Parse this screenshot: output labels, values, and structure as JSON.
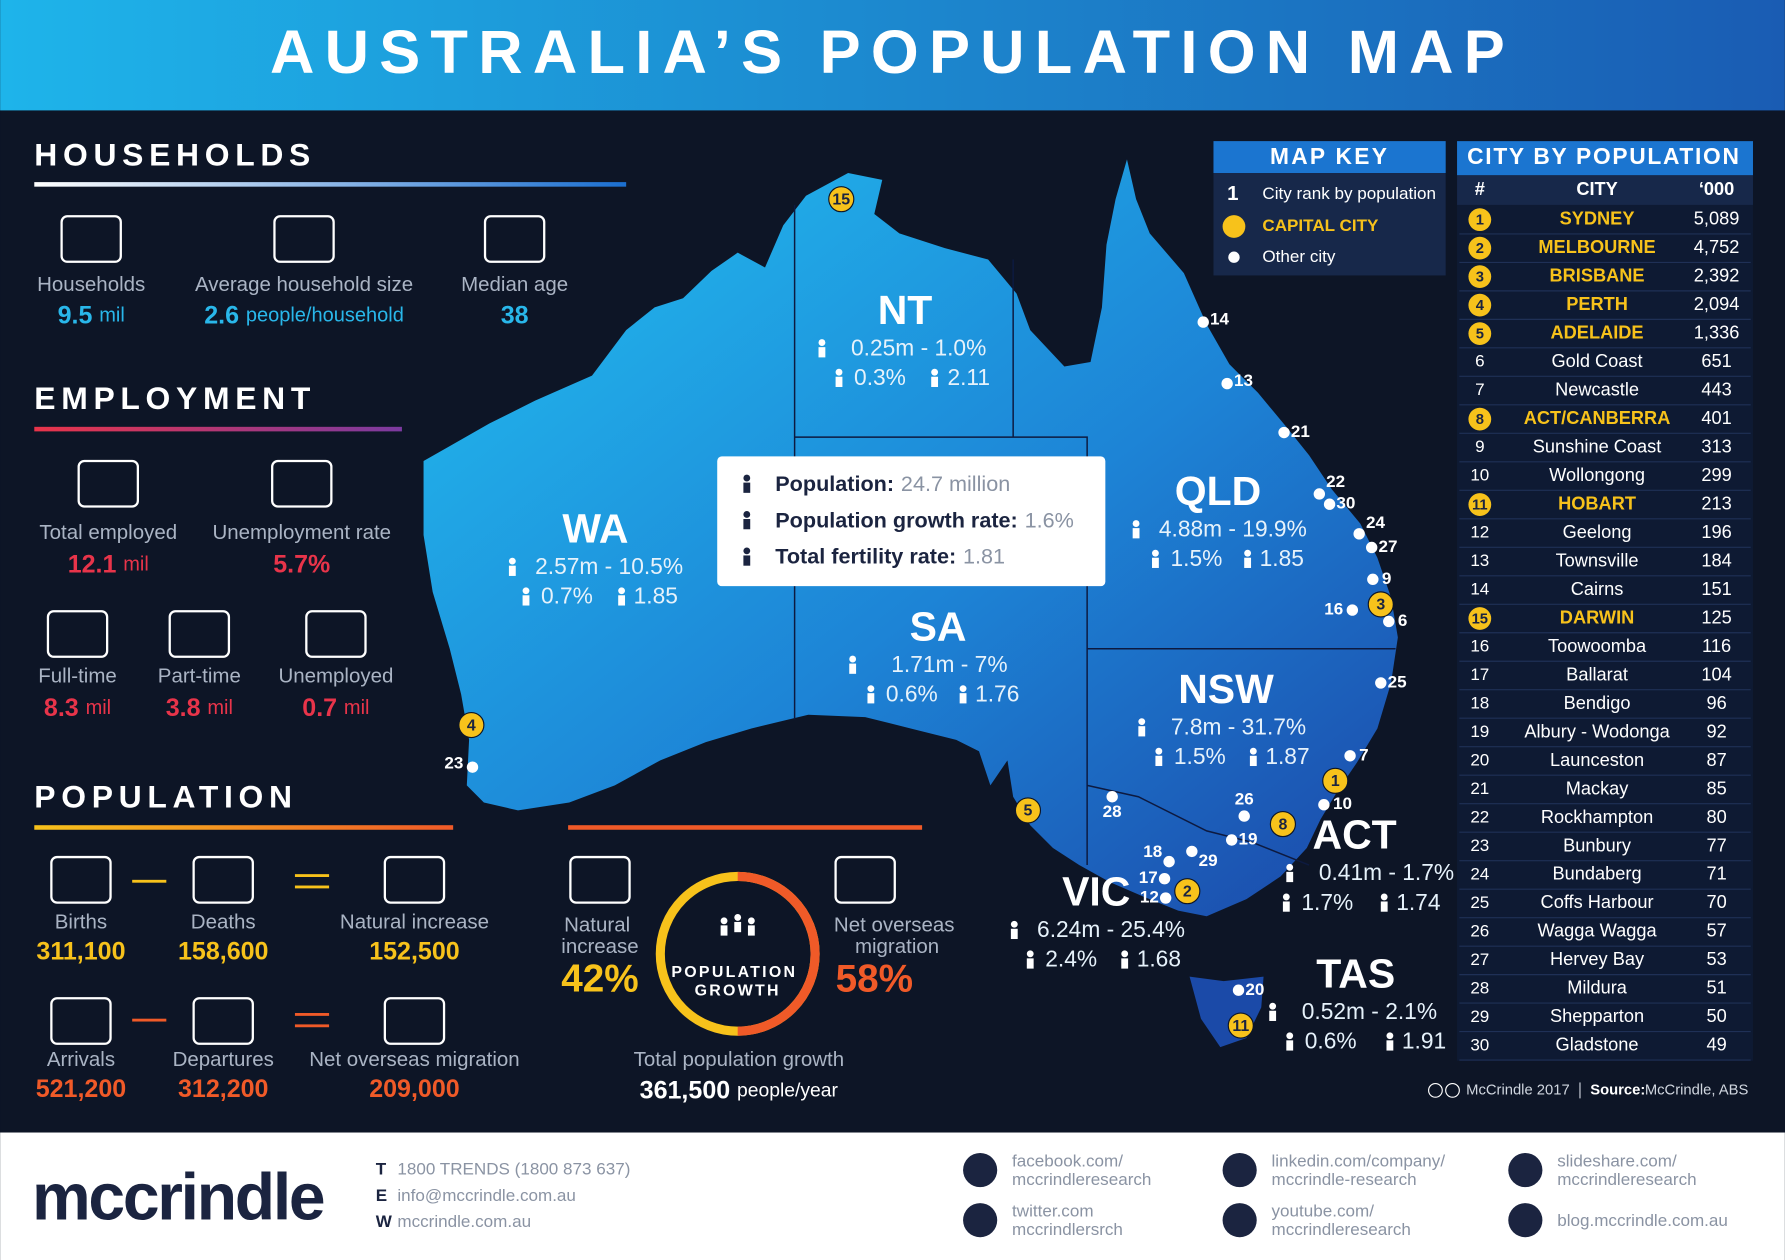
{
  "header": {
    "title": "AUSTRALIA’S POPULATION MAP"
  },
  "households": {
    "heading": "HOUSEHOLDS",
    "items": [
      {
        "label": "Households",
        "value": "9.5",
        "unit": "mil"
      },
      {
        "label": "Average household size",
        "value": "2.6",
        "unit": "people/household"
      },
      {
        "label": "Median age",
        "value": "38"
      }
    ]
  },
  "employment": {
    "heading": "EMPLOYMENT",
    "items": [
      {
        "label": "Total employed",
        "value": "12.1",
        "unit": "mil"
      },
      {
        "label": "Unemployment rate",
        "value": "5.7%"
      },
      {
        "label": "Full-time",
        "value": "8.3",
        "unit": "mil"
      },
      {
        "label": "Part-time",
        "value": "3.8",
        "unit": "mil"
      },
      {
        "label": "Unemployed",
        "value": "0.7",
        "unit": "mil"
      }
    ]
  },
  "population": {
    "heading": "POPULATION",
    "items": [
      {
        "label": "Births",
        "value": "311,100"
      },
      {
        "label": "Deaths",
        "value": "158,600"
      },
      {
        "label": "Natural increase",
        "value": "152,500"
      },
      {
        "label": "Arrivals",
        "value": "521,200"
      },
      {
        "label": "Departures",
        "value": "312,200"
      },
      {
        "label": "Net overseas migration",
        "value": "209,000"
      }
    ]
  },
  "growth": {
    "natural_label": "Natural increase",
    "natural_value": "42%",
    "center": "POPULATION GROWTH",
    "overseas_label": "Net overseas migration",
    "overseas_value": "58%",
    "total_label": "Total population growth",
    "total_value": "361,500",
    "total_unit": "people/year"
  },
  "summary": {
    "items": [
      {
        "label": "Population:",
        "value": "24.7 million"
      },
      {
        "label": "Population growth rate:",
        "value": "1.6%"
      },
      {
        "label": "Total fertility rate:",
        "value": "1.81"
      }
    ]
  },
  "states": [
    {
      "name": "NT",
      "population": "0.25m - 1.0%",
      "growth": "0.3%",
      "fertility": "2.11"
    },
    {
      "name": "WA",
      "population": "2.57m - 10.5%",
      "growth": "0.7%",
      "fertility": "1.85"
    },
    {
      "name": "SA",
      "population": "1.71m - 7%",
      "growth": "0.6%",
      "fertility": "1.76"
    },
    {
      "name": "QLD",
      "population": "4.88m - 19.9%",
      "growth": "1.5%",
      "fertility": "1.85"
    },
    {
      "name": "NSW",
      "population": "7.8m - 31.7%",
      "growth": "1.5%",
      "fertility": "1.87"
    },
    {
      "name": "ACT",
      "population": "0.41m - 1.7%",
      "growth": "1.7%",
      "fertility": "1.74"
    },
    {
      "name": "VIC",
      "population": "6.24m - 25.4%",
      "growth": "2.4%",
      "fertility": "1.68"
    },
    {
      "name": "TAS",
      "population": "0.52m - 2.1%",
      "growth": "0.6%",
      "fertility": "1.91"
    }
  ],
  "map_key": {
    "title": "MAP KEY",
    "rank_symbol": "1",
    "items": [
      "City rank by population",
      "CAPITAL CITY",
      "Other city"
    ]
  },
  "city_table": {
    "title": "CITY BY POPULATION",
    "columns": [
      "#",
      "CITY",
      "‘000"
    ],
    "rows": [
      {
        "rank": "1",
        "city": "SYDNEY",
        "population": "5,089",
        "capital": true
      },
      {
        "rank": "2",
        "city": "MELBOURNE",
        "population": "4,752",
        "capital": true
      },
      {
        "rank": "3",
        "city": "BRISBANE",
        "population": "2,392",
        "capital": true
      },
      {
        "rank": "4",
        "city": "PERTH",
        "population": "2,094",
        "capital": true
      },
      {
        "rank": "5",
        "city": "ADELAIDE",
        "population": "1,336",
        "capital": true
      },
      {
        "rank": "6",
        "city": "Gold Coast",
        "population": "651",
        "capital": false
      },
      {
        "rank": "7",
        "city": "Newcastle",
        "population": "443",
        "capital": false
      },
      {
        "rank": "8",
        "city": "ACT/CANBERRA",
        "population": "401",
        "capital": true
      },
      {
        "rank": "9",
        "city": "Sunshine Coast",
        "population": "313",
        "capital": false
      },
      {
        "rank": "10",
        "city": "Wollongong",
        "population": "299",
        "capital": false
      },
      {
        "rank": "11",
        "city": "HOBART",
        "population": "213",
        "capital": true
      },
      {
        "rank": "12",
        "city": "Geelong",
        "population": "196",
        "capital": false
      },
      {
        "rank": "13",
        "city": "Townsville",
        "population": "184",
        "capital": false
      },
      {
        "rank": "14",
        "city": "Cairns",
        "population": "151",
        "capital": false
      },
      {
        "rank": "15",
        "city": "DARWIN",
        "population": "125",
        "capital": true
      },
      {
        "rank": "16",
        "city": "Toowoomba",
        "population": "116",
        "capital": false
      },
      {
        "rank": "17",
        "city": "Ballarat",
        "population": "104",
        "capital": false
      },
      {
        "rank": "18",
        "city": "Bendigo",
        "population": "96",
        "capital": false
      },
      {
        "rank": "19",
        "city": "Albury - Wodonga",
        "population": "92",
        "capital": false
      },
      {
        "rank": "20",
        "city": "Launceston",
        "population": "87",
        "capital": false
      },
      {
        "rank": "21",
        "city": "Mackay",
        "population": "85",
        "capital": false
      },
      {
        "rank": "22",
        "city": "Rockhampton",
        "population": "80",
        "capital": false
      },
      {
        "rank": "23",
        "city": "Bunbury",
        "population": "77",
        "capital": false
      },
      {
        "rank": "24",
        "city": "Bundaberg",
        "population": "71",
        "capital": false
      },
      {
        "rank": "25",
        "city": "Coffs Harbour",
        "population": "70",
        "capital": false
      },
      {
        "rank": "26",
        "city": "Wagga Wagga",
        "population": "57",
        "capital": false
      },
      {
        "rank": "27",
        "city": "Hervey Bay",
        "population": "53",
        "capital": false
      },
      {
        "rank": "28",
        "city": "Mildura",
        "population": "51",
        "capital": false
      },
      {
        "rank": "29",
        "city": "Shepparton",
        "population": "50",
        "capital": false
      },
      {
        "rank": "30",
        "city": "Gladstone",
        "population": "49",
        "capital": false
      }
    ]
  },
  "credit": {
    "copyright": "McCrindle 2017",
    "source_label": "Source:",
    "source": "McCrindle, ABS"
  },
  "footer": {
    "logo": "mccrindle",
    "contacts": [
      {
        "key": "T",
        "text": "1800 TRENDS (1800 873 637)"
      },
      {
        "key": "E",
        "text": "info@mccrindle.com.au"
      },
      {
        "key": "W",
        "text": "mccrindle.com.au"
      }
    ],
    "social": [
      {
        "lines": [
          "facebook.com/",
          "mccrindleresearch"
        ]
      },
      {
        "lines": [
          "twitter.com",
          "mccrindlersrch"
        ]
      },
      {
        "lines": [
          "linkedin.com/company/",
          "mccrindle-research"
        ]
      },
      {
        "lines": [
          "youtube.com/",
          "mccrindleresearch"
        ]
      },
      {
        "lines": [
          "slideshare.com/",
          "mccrindleresearch"
        ]
      },
      {
        "lines": [
          "blog.mccrindle.com.au"
        ]
      }
    ]
  }
}
